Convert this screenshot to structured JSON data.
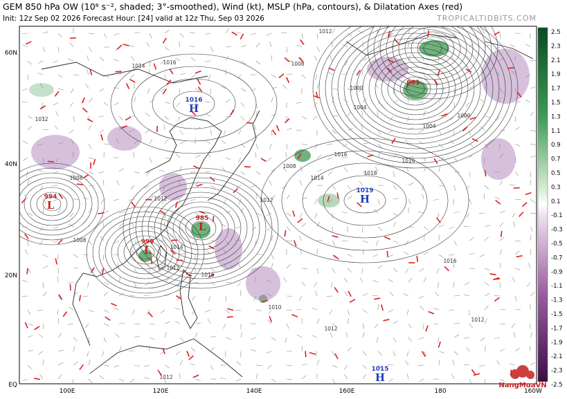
{
  "header": {
    "title": "GEM 850 hPa OW (10⁸ s⁻², shaded; 3°-smoothed), Wind (kt), MSLP (hPa, contours), & Dilatation Axes (red)",
    "subtitle": "Init: 12z Sep 02 2026   Forecast Hour: [24]   valid at 12z Thu, Sep 03 2026",
    "site": "TROPICALTIDBITS.COM"
  },
  "map": {
    "lat_labels": [
      "60N",
      "40N",
      "20N",
      "EQ"
    ],
    "lon_labels": [
      "100E",
      "120E",
      "140E",
      "160E",
      "180",
      "160W"
    ],
    "pressure_centers": [
      {
        "value": "1016",
        "symbol": "H"
      },
      {
        "value": "994",
        "symbol": "L"
      },
      {
        "value": "985",
        "symbol": "L"
      },
      {
        "value": "990",
        "symbol": "L"
      },
      {
        "value": "981",
        "symbol": "L"
      },
      {
        "value": "1019",
        "symbol": "H"
      },
      {
        "value": "1015",
        "symbol": "H"
      }
    ],
    "contour_labels": [
      "1012",
      "1014",
      "1016",
      "1008",
      "1004",
      "1000",
      "1012",
      "1016",
      "1018",
      "1008",
      "1012",
      "1014",
      "1016",
      "1012",
      "1008",
      "1014",
      "1016",
      "1012",
      "1010",
      "1012",
      "1012",
      "1016",
      "1004",
      "1000",
      "1008",
      "1012"
    ]
  },
  "colorbar": {
    "labels": [
      "2.5",
      "2.3",
      "2.1",
      "1.9",
      "1.7",
      "1.5",
      "1.3",
      "1.1",
      "0.9",
      "0.7",
      "0.5",
      "0.3",
      "0.1",
      "-0.1",
      "-0.3",
      "-0.5",
      "-0.7",
      "-0.9",
      "-1.1",
      "-1.3",
      "-1.5",
      "-1.7",
      "-1.9",
      "-2.1",
      "-2.3",
      "-2.5"
    ]
  },
  "watermark": "NangMuaVN"
}
